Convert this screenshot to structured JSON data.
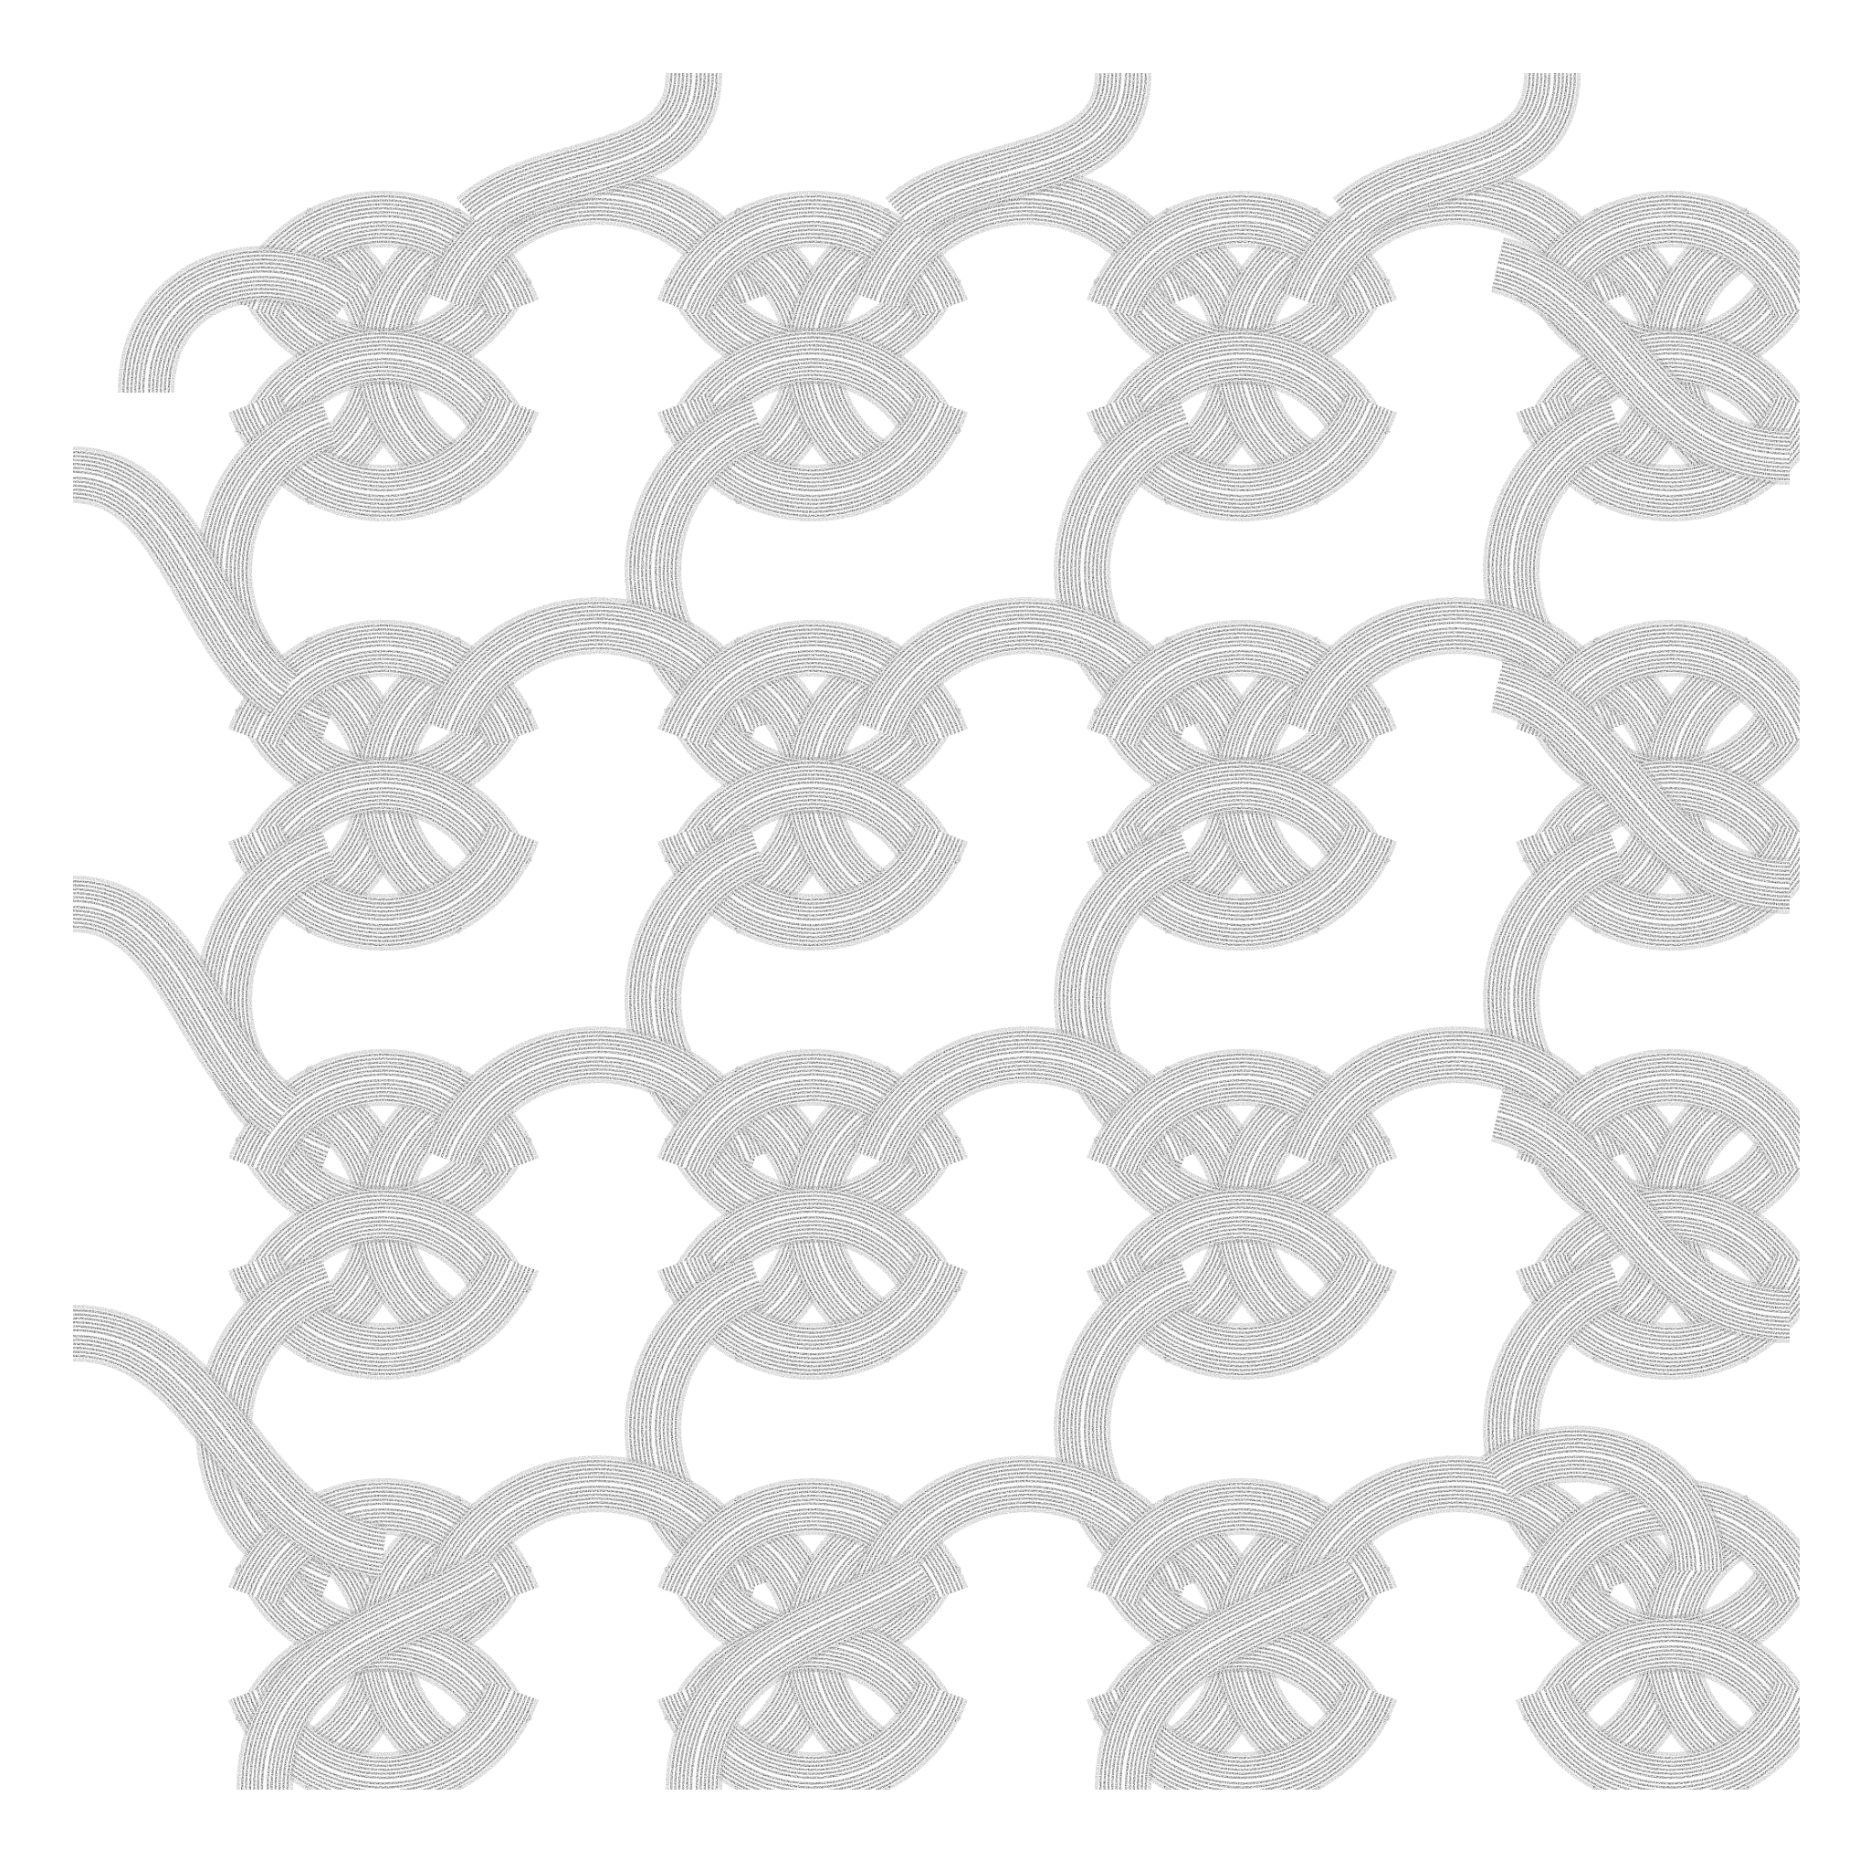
{
  "artwork": {
    "subject": "interlaced-ribbon-knot-lattice",
    "style": "stippled-engraving",
    "grid_columns": 4,
    "grid_rows": 4,
    "stripes_per_ribbon": 6,
    "colors": {
      "background": "#ffffff",
      "ink": "#1a1a1a",
      "stripe_dark": "#262626",
      "stripe_light": "#f2f2f2",
      "shadow": "#0d0d0d"
    }
  }
}
